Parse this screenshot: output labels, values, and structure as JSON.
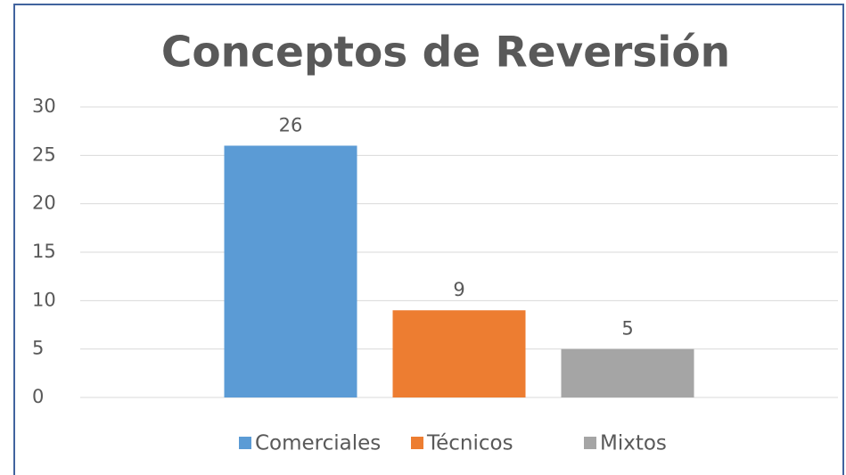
{
  "chart_data": {
    "type": "bar",
    "title": "Conceptos de Reversión",
    "categories": [
      null
    ],
    "series": [
      {
        "name": "Comerciales",
        "color": "#5b9bd5",
        "values": [
          26
        ]
      },
      {
        "name": "Técnicos",
        "color": "#ed7d31",
        "values": [
          9
        ]
      },
      {
        "name": "Mixtos",
        "color": "#a5a5a5",
        "values": [
          5
        ]
      }
    ],
    "ylim": [
      0,
      30
    ],
    "yticks": [
      0,
      5,
      10,
      15,
      20,
      25,
      30
    ],
    "grid": true,
    "legend": "bottom"
  }
}
